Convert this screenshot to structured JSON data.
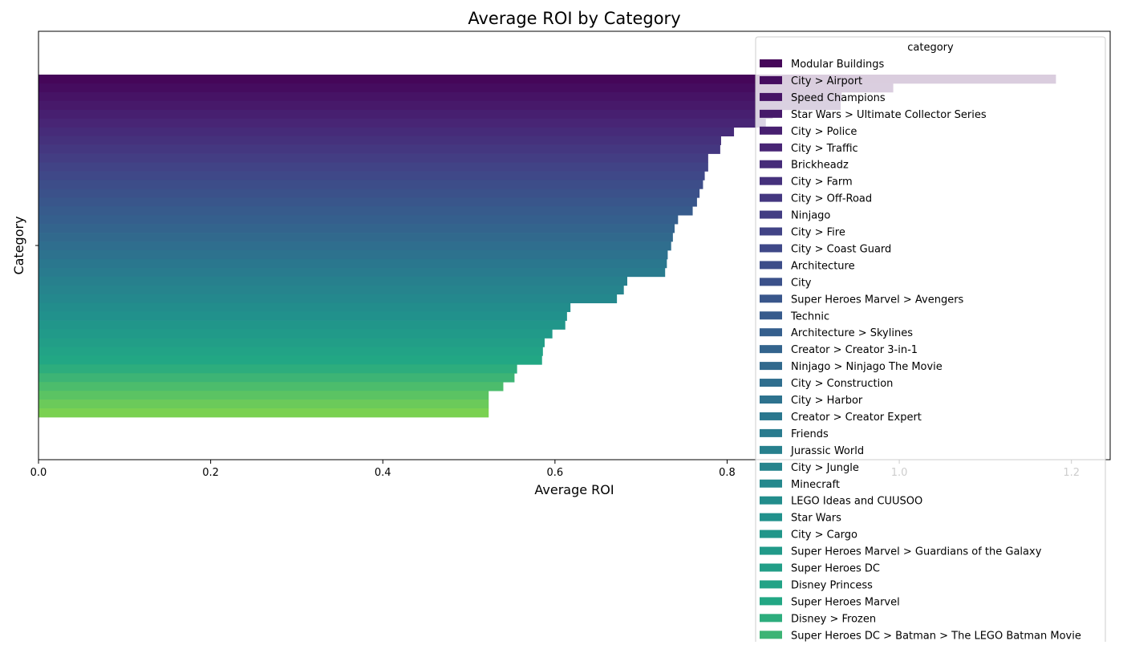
{
  "chart_data": {
    "type": "bar",
    "orientation": "horizontal",
    "title": "Average ROI by Category",
    "xlabel": "Average ROI",
    "ylabel": "Category",
    "xlim": [
      0,
      1.245
    ],
    "xticks": [
      0.0,
      0.2,
      0.4,
      0.6,
      0.8,
      1.0,
      1.2
    ],
    "xtick_labels": [
      "0.0",
      "0.2",
      "0.4",
      "0.6",
      "0.8",
      "1.0",
      "1.2"
    ],
    "grid": false,
    "legend": {
      "title": "category",
      "placement": "top-right"
    },
    "palette": "viridis",
    "categories": [
      "Modular Buildings",
      "City > Airport",
      "Speed Champions",
      "Star Wars > Ultimate Collector Series",
      "City > Police",
      "City > Traffic",
      "Brickheadz",
      "City > Farm",
      "City > Off-Road",
      "Ninjago",
      "City > Fire",
      "City > Coast Guard",
      "Architecture",
      "City",
      "Super Heroes Marvel > Avengers",
      "Technic",
      "Architecture > Skylines",
      "Creator > Creator 3-in-1",
      "Ninjago > Ninjago The Movie",
      "City > Construction",
      "City > Harbor",
      "Creator > Creator Expert",
      "Friends",
      "Jurassic World",
      "City > Jungle",
      "Minecraft",
      "LEGO Ideas and CUUSOO",
      "Star Wars",
      "City > Cargo",
      "Super Heroes Marvel > Guardians of the Galaxy",
      "Super Heroes DC",
      "Disney Princess",
      "Super Heroes Marvel",
      "Disney > Frozen",
      "Super Heroes DC > Batman > The LEGO Batman Movie",
      "",
      "",
      "",
      ""
    ],
    "values": [
      1.182,
      0.993,
      0.933,
      0.932,
      0.853,
      0.845,
      0.808,
      0.793,
      0.792,
      0.778,
      0.778,
      0.774,
      0.772,
      0.768,
      0.765,
      0.76,
      0.743,
      0.739,
      0.737,
      0.735,
      0.731,
      0.73,
      0.728,
      0.684,
      0.68,
      0.672,
      0.618,
      0.614,
      0.612,
      0.597,
      0.588,
      0.586,
      0.585,
      0.556,
      0.553,
      0.54,
      0.523,
      0.523,
      0.523
    ]
  }
}
